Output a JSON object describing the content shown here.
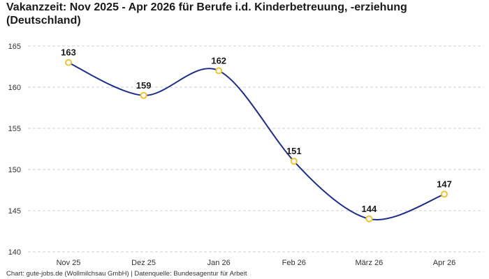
{
  "title": "Vakanzzeit: Nov 2025 - Apr 2026 für Berufe i.d. Kinderbetreuung, -erziehung (Deutschland)",
  "footer": "Chart: gute-jobs.de (Wollmilchsau GmbH) | Datenquelle: Bundesagentur für Arbeit",
  "colors": {
    "line": "#1f2d8a",
    "marker": "#f2c230",
    "grid": "#cccccc"
  },
  "chart_data": {
    "type": "line",
    "categories": [
      "Nov 25",
      "Dez 25",
      "Jan 26",
      "Feb 26",
      "März 26",
      "Apr 26"
    ],
    "series": [
      {
        "values": [
          163,
          159,
          162,
          151,
          144,
          147
        ]
      }
    ],
    "ylim": [
      140,
      165
    ],
    "yticks": [
      140,
      145,
      150,
      155,
      160,
      165
    ],
    "grid": true,
    "data_labels": true,
    "xlabel": "",
    "ylabel": ""
  }
}
